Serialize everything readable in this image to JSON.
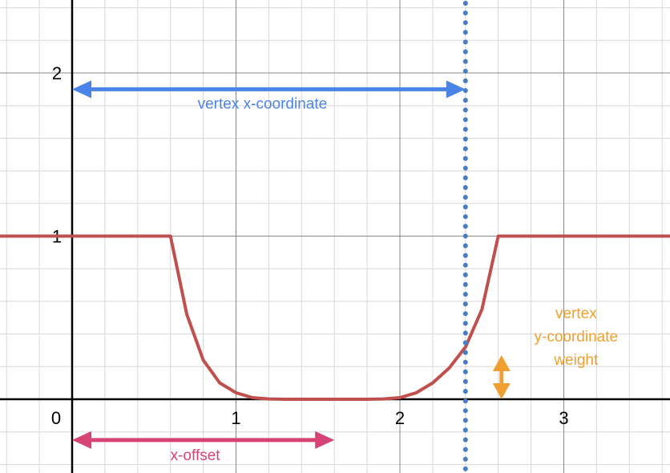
{
  "chart_data": {
    "type": "line",
    "title": "",
    "xlabel": "",
    "ylabel": "",
    "xlim": [
      -0.45,
      3.65
    ],
    "ylim": [
      -0.45,
      2.45
    ],
    "grid": true,
    "minor_grid_step": 0.2,
    "x_ticks": [
      "0",
      "1",
      "2",
      "3"
    ],
    "y_ticks": [
      "1",
      "2"
    ],
    "series": [
      {
        "color": "#c0504d",
        "x": [
          -0.45,
          0.6,
          0.7,
          0.8,
          0.9,
          1.0,
          1.1,
          1.2,
          1.3,
          1.4,
          1.5,
          1.6,
          1.7,
          1.8,
          1.9,
          2.0,
          2.1,
          2.2,
          2.3,
          2.4,
          2.5,
          2.6,
          3.65
        ],
        "y": [
          1,
          1,
          0.52,
          0.24,
          0.1,
          0.04,
          0.01,
          0.002,
          0,
          0,
          0,
          0,
          0,
          0,
          0.002,
          0.01,
          0.04,
          0.1,
          0.19,
          0.32,
          0.55,
          1,
          1
        ]
      }
    ],
    "vertical_line": {
      "x": 2.4,
      "color": "#4a7cc4",
      "style": "dotted"
    },
    "annotations": {
      "vertex_x": {
        "text": "vertex x-coordinate",
        "color": "#4b84e8",
        "from_x": 0,
        "to_x": 2.4,
        "y": 1.9
      },
      "x_offset": {
        "text": "x-offset",
        "color": "#d64473",
        "from_x": 0,
        "to_x": 1.6,
        "y": -0.25
      },
      "weight": {
        "lines": [
          "vertex",
          "y-coordinate",
          "weight"
        ],
        "color": "#f0a030",
        "x": 2.62,
        "from_y": 0.27,
        "to_y": 0.0
      }
    }
  }
}
